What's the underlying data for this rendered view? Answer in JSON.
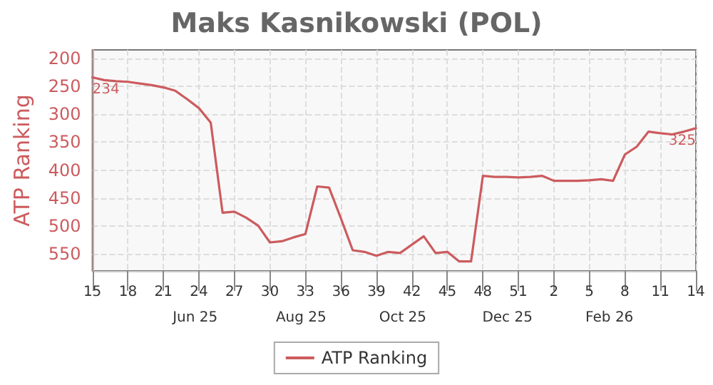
{
  "chart_data": {
    "type": "line",
    "title": "Maks Kasnikowski (POL)",
    "ylabel": "ATP Ranking",
    "categories": [
      "15",
      null,
      null,
      "18",
      null,
      null,
      "21",
      null,
      null,
      "24",
      null,
      null,
      "27",
      null,
      null,
      "30",
      null,
      null,
      "33",
      null,
      null,
      "36",
      null,
      null,
      "39",
      null,
      null,
      "42",
      null,
      null,
      "45",
      null,
      null,
      "48",
      null,
      null,
      "51",
      null,
      null,
      "2",
      null,
      null,
      "5",
      null,
      null,
      "8",
      null,
      null,
      "11",
      null,
      null,
      "14"
    ],
    "series": [
      {
        "name": "ATP Ranking",
        "color": "#cc5b5e",
        "values": [
          234,
          239,
          241,
          242,
          245,
          248,
          252,
          258,
          273,
          289,
          315,
          476,
          474,
          485,
          499,
          529,
          527,
          520,
          514,
          429,
          431,
          486,
          543,
          546,
          553,
          546,
          548,
          533,
          518,
          548,
          546,
          563,
          563,
          410,
          412,
          412,
          413,
          412,
          410,
          419,
          419,
          419,
          418,
          416,
          419,
          372,
          358,
          331,
          334,
          336,
          331,
          325
        ],
        "value_labels": [
          "234",
          null,
          null,
          null,
          null,
          null,
          null,
          null,
          null,
          null,
          null,
          null,
          null,
          null,
          null,
          null,
          null,
          null,
          null,
          null,
          null,
          null,
          null,
          null,
          null,
          null,
          null,
          null,
          null,
          null,
          null,
          null,
          null,
          null,
          null,
          null,
          null,
          null,
          null,
          null,
          null,
          null,
          null,
          null,
          null,
          null,
          null,
          null,
          null,
          null,
          null,
          "325"
        ]
      }
    ],
    "annotations": [
      "Jun 25",
      "Aug 25",
      "Oct 25",
      "Dec 25",
      "Feb 26"
    ],
    "ylim": [
      580,
      185
    ],
    "yticks": [
      200,
      250,
      300,
      350,
      400,
      450,
      500,
      550
    ],
    "grid": true,
    "legend": "bottom",
    "marker": "none",
    "line_style": "solid"
  }
}
